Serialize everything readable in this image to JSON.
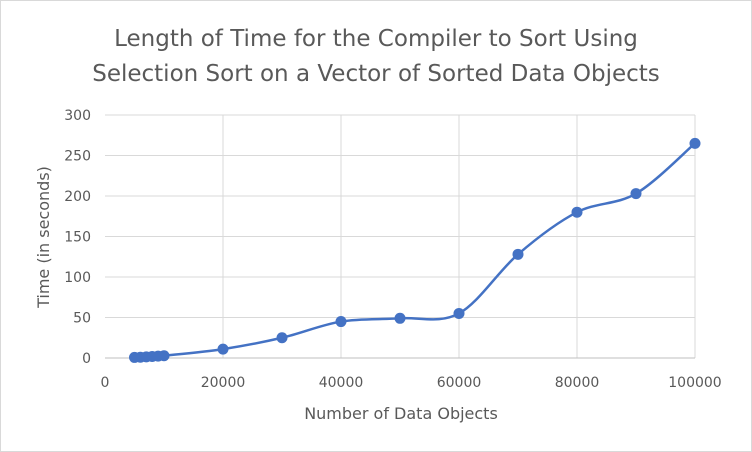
{
  "chart_data": {
    "type": "scatter",
    "title_lines": [
      "Length of Time for the Compiler to Sort Using",
      "Selection Sort on a Vector of Sorted Data Objects"
    ],
    "xlabel": "Number of Data Objects",
    "ylabel": "Time (in seconds)",
    "xlim": [
      0,
      100000
    ],
    "ylim": [
      0,
      300
    ],
    "x_ticks": [
      0,
      20000,
      40000,
      60000,
      80000,
      100000
    ],
    "y_ticks": [
      0,
      50,
      100,
      150,
      200,
      250,
      300
    ],
    "grid": "vertical and horizontal",
    "smooth_line": true,
    "series": [
      {
        "color": "#4472c4",
        "x": [
          5000,
          6000,
          7000,
          8000,
          9000,
          10000,
          20000,
          30000,
          40000,
          50000,
          60000,
          70000,
          80000,
          90000,
          100000
        ],
        "y": [
          0.7,
          1,
          1.4,
          1.8,
          2.3,
          2.8,
          11,
          25,
          45,
          49,
          55,
          128,
          180,
          203,
          265
        ]
      }
    ]
  }
}
